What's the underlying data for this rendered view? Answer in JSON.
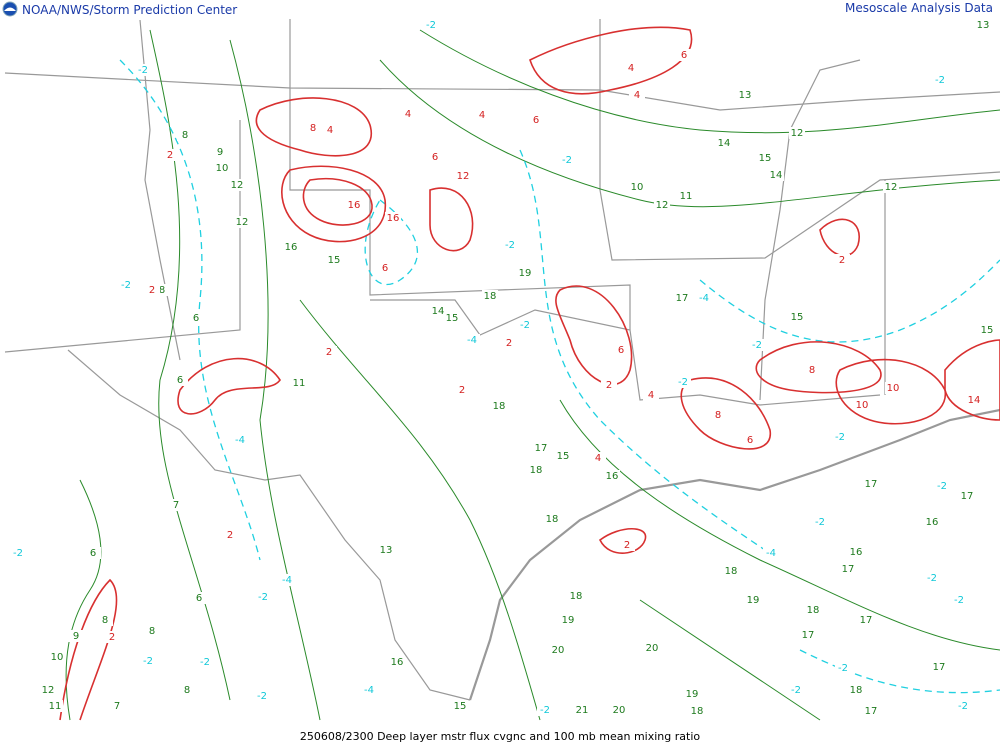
{
  "header": {
    "left": "NOAA/NWS/Storm Prediction Center",
    "right": "Mesoscale Analysis Data"
  },
  "footer": {
    "caption": "250608/2300 Deep layer mstr flux cvgnc and 100 mb mean mixing ratio"
  },
  "labels": {
    "mixing_ratio": [
      13,
      13,
      12,
      14,
      15,
      14,
      10,
      11,
      12,
      12,
      8,
      9,
      10,
      12,
      12,
      16,
      15,
      8,
      6,
      6,
      11,
      14,
      15,
      18,
      19,
      17,
      15,
      18,
      17,
      15,
      18,
      16,
      18,
      13,
      7,
      6,
      6,
      8,
      8,
      9,
      10,
      12,
      11,
      8,
      7,
      16,
      15,
      18,
      19,
      20,
      20,
      21,
      20,
      19,
      18,
      18,
      19,
      17,
      18,
      16,
      17,
      17,
      17,
      18,
      17,
      16,
      17,
      17,
      15
    ],
    "convergence": [
      8,
      4,
      6,
      4,
      4,
      4,
      6,
      4,
      6,
      12,
      16,
      16,
      6,
      2,
      2,
      2,
      2,
      6,
      2,
      4,
      8,
      6,
      8,
      10,
      10,
      14,
      2,
      4,
      2,
      2,
      2,
      2
    ],
    "divergence": [
      -2,
      -2,
      -2,
      -2,
      -2,
      -2,
      -2,
      -4,
      -2,
      -2,
      -2,
      -4,
      -4,
      -2,
      -2,
      -4,
      -2,
      -2,
      -2,
      -2,
      -2,
      -2,
      -4,
      -2,
      -2,
      -2,
      -2,
      -4,
      -2
    ]
  }
}
